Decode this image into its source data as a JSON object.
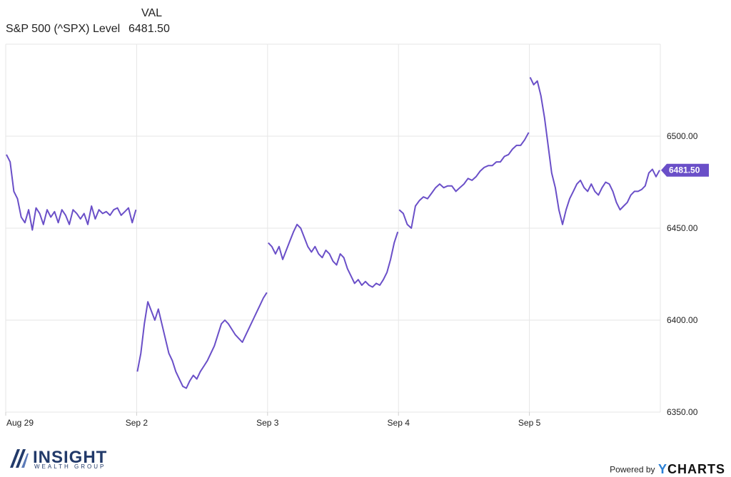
{
  "legend": {
    "header": "VAL",
    "series_name": "S&P 500 (^SPX) Level",
    "series_value": "6481.50"
  },
  "colors": {
    "line": "#6a4fc8",
    "grid": "#e6e6e6",
    "tag": "#6a4fc8"
  },
  "chart_data": {
    "type": "line",
    "title": "",
    "xlabel": "",
    "ylabel": "",
    "ylim": [
      6350,
      6550
    ],
    "yticks": [
      6350,
      6400,
      6450,
      6500
    ],
    "ytick_labels": [
      "6350.00",
      "6400.00",
      "6450.00",
      "6500.00"
    ],
    "xtick_labels": [
      "Aug 29",
      "Sep 2",
      "Sep 3",
      "Sep 4",
      "Sep 5"
    ],
    "y_axis_position": "right",
    "grid": true,
    "last_value_label": "6481.50",
    "sessions": [
      {
        "label": "Aug 29",
        "values": [
          6490,
          6486,
          6470,
          6466,
          6456,
          6453,
          6460,
          6449,
          6461,
          6458,
          6452,
          6460,
          6456,
          6459,
          6453,
          6460,
          6457,
          6452,
          6460,
          6458,
          6455,
          6458,
          6452,
          6462,
          6455,
          6460,
          6458,
          6459,
          6457,
          6460,
          6461,
          6457,
          6459,
          6461,
          6453,
          6460
        ]
      },
      {
        "label": "Sep 2",
        "values": [
          6372,
          6382,
          6398,
          6410,
          6405,
          6400,
          6406,
          6398,
          6390,
          6382,
          6378,
          6372,
          6368,
          6364,
          6363,
          6367,
          6370,
          6368,
          6372,
          6375,
          6378,
          6382,
          6386,
          6392,
          6398,
          6400,
          6398,
          6395,
          6392,
          6390,
          6388,
          6392,
          6396,
          6400,
          6404,
          6408,
          6412,
          6415
        ]
      },
      {
        "label": "Sep 3",
        "values": [
          6442,
          6440,
          6436,
          6440,
          6433,
          6438,
          6443,
          6448,
          6452,
          6450,
          6445,
          6440,
          6437,
          6440,
          6436,
          6434,
          6438,
          6436,
          6432,
          6430,
          6436,
          6434,
          6428,
          6424,
          6420,
          6422,
          6419,
          6421,
          6419,
          6418,
          6420,
          6419,
          6422,
          6426,
          6433,
          6442,
          6448
        ]
      },
      {
        "label": "Sep 4",
        "values": [
          6460,
          6458,
          6452,
          6450,
          6462,
          6465,
          6467,
          6466,
          6469,
          6472,
          6474,
          6472,
          6473,
          6473,
          6470,
          6472,
          6474,
          6477,
          6476,
          6478,
          6481,
          6483,
          6484,
          6484,
          6486,
          6486,
          6489,
          6490,
          6493,
          6495,
          6495,
          6498,
          6502
        ]
      },
      {
        "label": "Sep 5",
        "values": [
          6532,
          6528,
          6530,
          6522,
          6510,
          6495,
          6480,
          6472,
          6460,
          6452,
          6460,
          6466,
          6470,
          6474,
          6476,
          6472,
          6470,
          6474,
          6470,
          6468,
          6472,
          6475,
          6474,
          6470,
          6464,
          6460,
          6462,
          6464,
          6468,
          6470,
          6470,
          6471,
          6473,
          6480,
          6482,
          6478,
          6481.5
        ]
      }
    ]
  },
  "footer": {
    "brand": "INSIGHT",
    "brand_sub": "WEALTH GROUP",
    "powered_by": "Powered by",
    "ycharts_y": "Y",
    "ycharts_rest": "CHARTS"
  }
}
